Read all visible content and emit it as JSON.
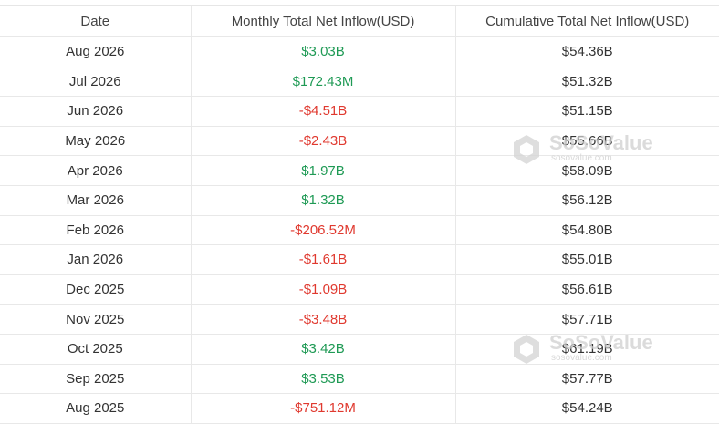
{
  "table": {
    "headers": [
      "Date",
      "Monthly Total Net Inflow(USD)",
      "Cumulative Total Net Inflow(USD)"
    ],
    "rows": [
      [
        "Aug 2026",
        "$3.03B",
        "$54.36B"
      ],
      [
        "Jul 2026",
        "$172.43M",
        "$51.32B"
      ],
      [
        "Jun 2026",
        "-$4.51B",
        "$51.15B"
      ],
      [
        "May 2026",
        "-$2.43B",
        "$55.66B"
      ],
      [
        "Apr 2026",
        "$1.97B",
        "$58.09B"
      ],
      [
        "Mar 2026",
        "$1.32B",
        "$56.12B"
      ],
      [
        "Feb 2026",
        "-$206.52M",
        "$54.80B"
      ],
      [
        "Jan 2026",
        "-$1.61B",
        "$55.01B"
      ],
      [
        "Dec 2025",
        "-$1.09B",
        "$56.61B"
      ],
      [
        "Nov 2025",
        "-$3.48B",
        "$57.71B"
      ],
      [
        "Oct 2025",
        "$3.42B",
        "$61.19B"
      ],
      [
        "Sep 2025",
        "$3.53B",
        "$57.77B"
      ],
      [
        "Aug 2025",
        "-$751.12M",
        "$54.24B"
      ]
    ],
    "colors": {
      "positive": "#1f9a55",
      "negative": "#e0392f",
      "neutral": "#333333"
    }
  },
  "watermark": {
    "brand": "SoSoValue",
    "site": "sosovalue.com"
  }
}
